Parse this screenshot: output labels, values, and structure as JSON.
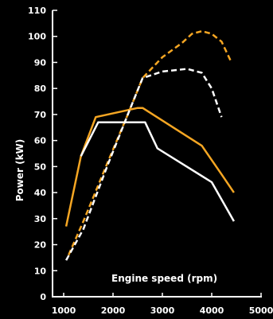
{
  "chart_data": {
    "type": "line",
    "title": "",
    "xlabel": "Engine speed (rpm)",
    "ylabel": "Power (kW)",
    "xlim": [
      1000,
      5000
    ],
    "ylim": [
      0,
      110
    ],
    "xticks": [
      1000,
      2000,
      3000,
      4000,
      5000
    ],
    "yticks": [
      0,
      10,
      20,
      30,
      40,
      50,
      60,
      70,
      80,
      90,
      100,
      110
    ],
    "grid": false,
    "legend": "none",
    "series": [
      {
        "color": "#f5a623",
        "dashed": false,
        "x": [
          1050,
          1350,
          1650,
          2500,
          2600,
          3800,
          4200,
          4450
        ],
        "y": [
          27,
          54,
          69,
          72.5,
          72.5,
          58,
          47,
          40
        ]
      },
      {
        "color": "#ffffff",
        "dashed": false,
        "x": [
          1350,
          1700,
          2650,
          2900,
          4000,
          4450
        ],
        "y": [
          54,
          67,
          67,
          57,
          44,
          29
        ]
      },
      {
        "color": "#f5a623",
        "dashed": true,
        "x": [
          1100,
          1400,
          1900,
          2300,
          2600,
          3000,
          3400,
          3600,
          3800,
          4000,
          4200,
          4400
        ],
        "y": [
          16,
          29,
          52,
          70,
          84,
          92,
          97.5,
          101,
          102,
          101,
          98,
          90
        ]
      },
      {
        "color": "#ffffff",
        "dashed": true,
        "x": [
          1050,
          1400,
          1900,
          2300,
          2600,
          3000,
          3500,
          3800,
          4000,
          4200
        ],
        "y": [
          14,
          26,
          51,
          70,
          84,
          86.5,
          87.5,
          86,
          80,
          69
        ]
      }
    ]
  }
}
